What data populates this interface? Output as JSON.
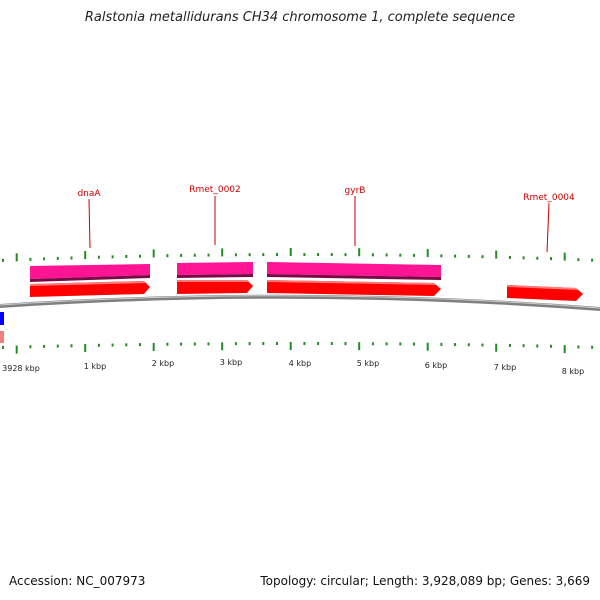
{
  "title": "Ralstonia metallidurans CH34 chromosome 1, complete sequence",
  "footer": {
    "accession": "Accession: NC_007973",
    "summary": "Topology: circular; Length: 3,928,089 bp; Genes: 3,669"
  },
  "colors": {
    "backbone": "#808080",
    "gene_forward": "#ff0000",
    "cds_band": "#ff1493",
    "gene_label": "#cc0000",
    "tick": "#228b22",
    "edge_blue": "#0000ff",
    "edge_pink": "#f08080"
  },
  "gene_labels": [
    "dnaA",
    "Rmet_0002",
    "gyrB",
    "Rmet_0004"
  ],
  "kbp_labels": [
    "3928 kbp",
    "1 kbp",
    "2 kbp",
    "3 kbp",
    "4 kbp",
    "5 kbp",
    "6 kbp",
    "7 kbp",
    "8 kbp"
  ]
}
